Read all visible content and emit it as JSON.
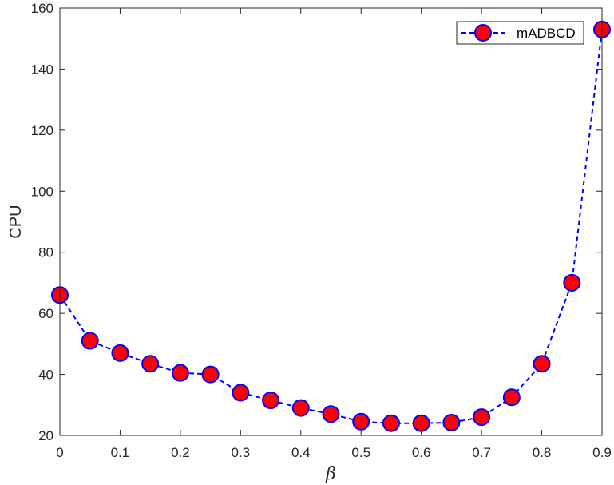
{
  "chart_data": {
    "type": "line",
    "x": [
      0,
      0.05,
      0.1,
      0.15,
      0.2,
      0.25,
      0.3,
      0.35,
      0.4,
      0.45,
      0.5,
      0.55,
      0.6,
      0.65,
      0.7,
      0.75,
      0.8,
      0.85,
      0.9
    ],
    "series": [
      {
        "name": "mADBCD",
        "values": [
          66,
          51,
          47,
          43.5,
          40.5,
          40,
          34,
          31.5,
          29,
          27,
          24.5,
          24,
          24,
          24.2,
          26,
          32.5,
          43.5,
          70,
          153
        ],
        "line_color": "#0000ff",
        "line_style": "dashed",
        "marker": "circle",
        "marker_face_color": "#ff0000",
        "marker_edge_color": "#0000ff"
      }
    ],
    "xlabel": "β",
    "ylabel": "CPU",
    "xlim": [
      0,
      0.9
    ],
    "ylim": [
      20,
      160
    ],
    "xticks": [
      0,
      0.1,
      0.2,
      0.3,
      0.4,
      0.5,
      0.6,
      0.7,
      0.8,
      0.9
    ],
    "xtick_labels": [
      "0",
      "0.1",
      "0.2",
      "0.3",
      "0.4",
      "0.5",
      "0.6",
      "0.7",
      "0.8",
      "0.9"
    ],
    "yticks": [
      20,
      40,
      60,
      80,
      100,
      120,
      140,
      160
    ],
    "ytick_labels": [
      "20",
      "40",
      "60",
      "80",
      "100",
      "120",
      "140",
      "160"
    ],
    "grid": false,
    "legend_position": "top-right",
    "axes_color": "#262626"
  }
}
